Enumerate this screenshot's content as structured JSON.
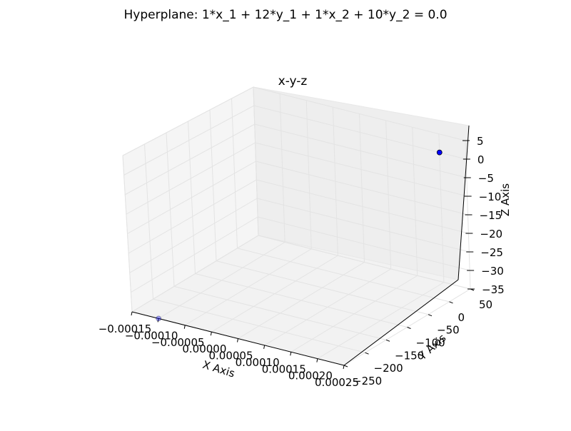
{
  "figure": {
    "suptitle": "Hyperplane: 1*x_1 + 12*y_1 + 1*x_2 + 10*y_2 = 0.0"
  },
  "chart_data": {
    "type": "scatter",
    "projection": "3d",
    "title": "x-y-z",
    "xlabel": "X Axis",
    "ylabel": "Y Axis",
    "zlabel": "Z Axis",
    "xlim": [
      -0.00015,
      0.00025
    ],
    "ylim": [
      -250,
      50
    ],
    "zlim": [
      -35,
      5
    ],
    "x_ticks": [
      "−0.00015",
      "−0.00010",
      "−0.00005",
      "0.00000",
      "0.00005",
      "0.00010",
      "0.00015",
      "0.00020",
      "0.00025"
    ],
    "y_ticks": [
      "−250",
      "−200",
      "−150",
      "−100",
      "−50",
      "0",
      "50"
    ],
    "z_ticks": [
      "−35",
      "−30",
      "−25",
      "−20",
      "−15",
      "−10",
      "−5",
      "0",
      "5"
    ],
    "grid": true,
    "points": [
      {
        "x": 0.0002,
        "y": 50,
        "z": 0,
        "color": "#0000ff",
        "alpha": 1.0
      },
      {
        "x": -0.0001,
        "y": -250,
        "z": -35,
        "color": "#0000ff",
        "alpha": 0.35
      }
    ]
  }
}
